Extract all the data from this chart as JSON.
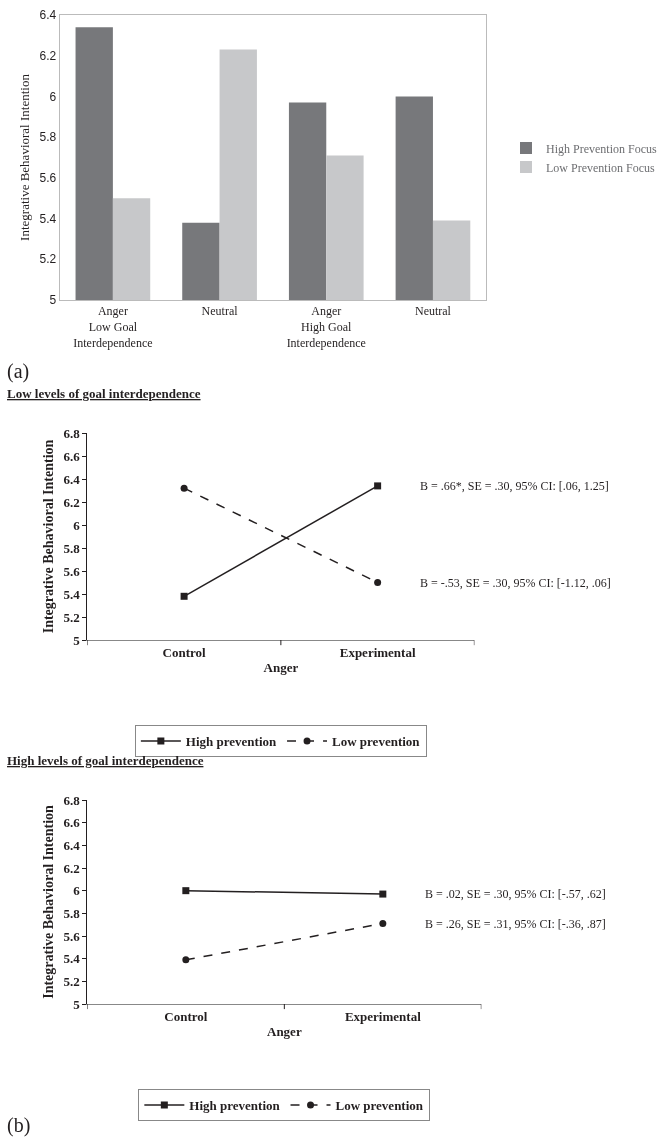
{
  "chart_data": [
    {
      "type": "bar",
      "ylabel": "Integrative Behavioral Intention",
      "categories": [
        "Anger\nLow Goal\nInterdependence",
        "Neutral",
        "Anger\nHigh Goal\nInterdependence",
        "Neutral"
      ],
      "series": [
        {
          "name": "High Prevention Focus",
          "color": "#77787b",
          "values": [
            6.34,
            5.38,
            5.97,
            6.0
          ]
        },
        {
          "name": "Low Prevention Focus",
          "color": "#c7c8ca",
          "values": [
            5.5,
            6.23,
            5.71,
            5.39
          ]
        }
      ],
      "ylim": [
        5,
        6.4
      ],
      "yticks": [
        5,
        5.2,
        5.4,
        5.6,
        5.8,
        6,
        6.2,
        6.4
      ],
      "legend": "right",
      "annotations": [
        "(a)"
      ]
    },
    {
      "type": "line",
      "title": "Low levels of goal interdependence",
      "xlabel": "Anger",
      "ylabel": "Integrative Behavioral Intention",
      "categories": [
        "Control",
        "Experimental"
      ],
      "series": [
        {
          "name": "High prevention",
          "color": "#231f20",
          "values": [
            5.38,
            6.34
          ],
          "marker": "square",
          "line_style": "solid"
        },
        {
          "name": "Low prevention",
          "color": "#231f20",
          "values": [
            6.32,
            5.5
          ],
          "marker": "circle",
          "line_style": "dashed"
        }
      ],
      "ylim": [
        5,
        6.8
      ],
      "yticks": [
        5,
        5.2,
        5.4,
        5.6,
        5.8,
        6,
        6.2,
        6.4,
        6.6,
        6.8
      ],
      "legend": "bottom",
      "annotations": [
        "B = .66*, SE = .30, 95% CI: [.06, 1.25]",
        "B = -.53, SE = .30, 95% CI: [-1.12, .06]"
      ]
    },
    {
      "type": "line",
      "title": "High levels of goal interdependence",
      "xlabel": "Anger",
      "ylabel": "Integrative Behavioral Intention",
      "categories": [
        "Control",
        "Experimental"
      ],
      "series": [
        {
          "name": "High prevention",
          "color": "#231f20",
          "values": [
            6.0,
            5.97
          ],
          "marker": "square",
          "line_style": "solid"
        },
        {
          "name": "Low prevention",
          "color": "#231f20",
          "values": [
            5.39,
            5.71
          ],
          "marker": "circle",
          "line_style": "dashed"
        }
      ],
      "ylim": [
        5,
        6.8
      ],
      "yticks": [
        5,
        5.2,
        5.4,
        5.6,
        5.8,
        6,
        6.2,
        6.4,
        6.6,
        6.8
      ],
      "legend": "bottom",
      "annotations": [
        "B = .02, SE = .30, 95% CI: [-.57, .62]",
        "B = .26, SE = .31, 95% CI: [-.36, .87]",
        "(b)"
      ]
    }
  ]
}
